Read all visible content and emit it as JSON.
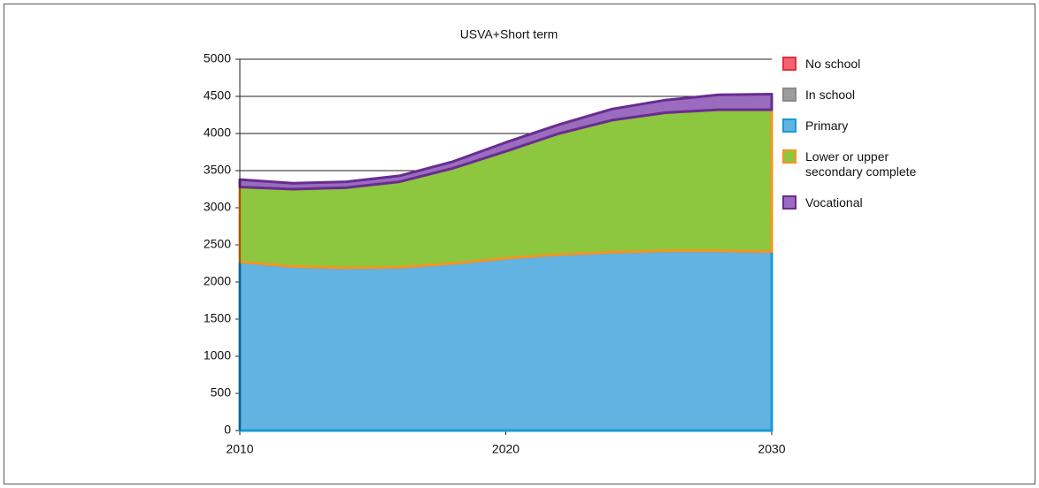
{
  "chart_data": {
    "type": "stacked-area",
    "title": "USVA+Short term",
    "x": [
      2010,
      2012,
      2014,
      2016,
      2018,
      2020,
      2022,
      2024,
      2026,
      2028,
      2030
    ],
    "series": [
      {
        "name": "No school",
        "color": "#f26472",
        "stroke": "#e3303f",
        "values": [
          0,
          0,
          0,
          0,
          0,
          0,
          0,
          0,
          0,
          0,
          0
        ]
      },
      {
        "name": "In school",
        "color": "#9d9d9d",
        "stroke": "#8a8a8a",
        "values": [
          0,
          0,
          0,
          0,
          0,
          0,
          0,
          0,
          0,
          0,
          0
        ]
      },
      {
        "name": "Primary",
        "color": "#62b3e2",
        "stroke": "#1a9ad6",
        "values": [
          2270,
          2210,
          2190,
          2200,
          2250,
          2320,
          2370,
          2400,
          2420,
          2420,
          2410
        ]
      },
      {
        "name": "Lower or upper secondary complete",
        "color": "#8dc63f",
        "stroke": "#f7941d",
        "values": [
          1010,
          1040,
          1080,
          1150,
          1280,
          1440,
          1630,
          1780,
          1860,
          1900,
          1910
        ]
      },
      {
        "name": "Vocational",
        "color": "#9b6bbf",
        "stroke": "#662d91",
        "values": [
          100,
          80,
          80,
          80,
          90,
          120,
          120,
          150,
          170,
          200,
          210
        ]
      }
    ],
    "xlim": [
      2010,
      2030
    ],
    "xticks": [
      2010,
      2020,
      2030
    ],
    "ylim": [
      0,
      5000
    ],
    "yticks": [
      0,
      500,
      1000,
      1500,
      2000,
      2500,
      3000,
      3500,
      4000,
      4500,
      5000
    ],
    "grid": true
  }
}
